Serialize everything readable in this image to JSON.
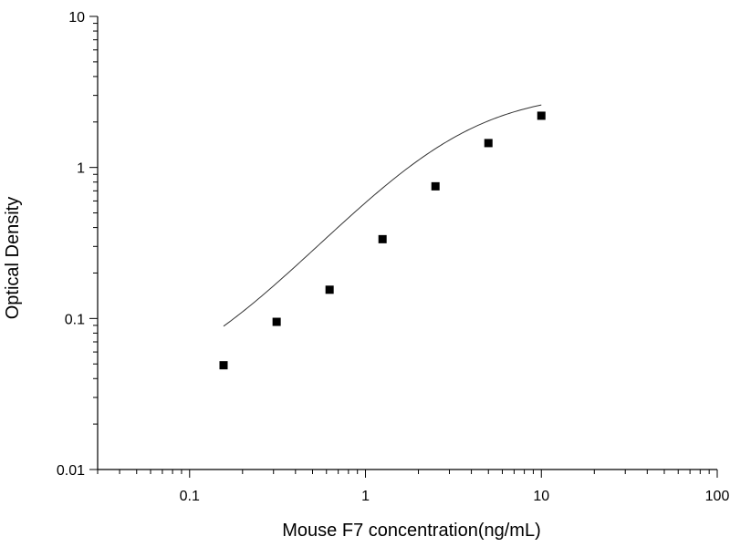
{
  "chart_data": {
    "type": "scatter",
    "title": "",
    "xlabel": "Mouse F7 concentration(ng/mL)",
    "ylabel": "Optical Density",
    "x_scale": "log",
    "y_scale": "log",
    "xlim": [
      0.03,
      100
    ],
    "ylim": [
      0.01,
      10
    ],
    "x_ticks": [
      0.1,
      1,
      10,
      100
    ],
    "y_ticks": [
      0.01,
      0.1,
      1,
      10
    ],
    "x_tick_labels": [
      "0.1",
      "1",
      "10",
      "100"
    ],
    "y_tick_labels": [
      "0.01",
      "0.1",
      "1",
      "10"
    ],
    "grid": false,
    "legend": "none",
    "series": [
      {
        "x": [
          0.156,
          0.3125,
          0.625,
          1.25,
          2.5,
          5,
          10
        ],
        "y": [
          0.049,
          0.095,
          0.155,
          0.335,
          0.75,
          1.45,
          2.2
        ],
        "marker": "square",
        "color": "#000000",
        "fit_curve": {
          "type": "4PL",
          "a": 0.03,
          "b": 1.3,
          "c": 3.3,
          "d": 3.2,
          "x_range": [
            0.156,
            10
          ]
        }
      }
    ]
  }
}
